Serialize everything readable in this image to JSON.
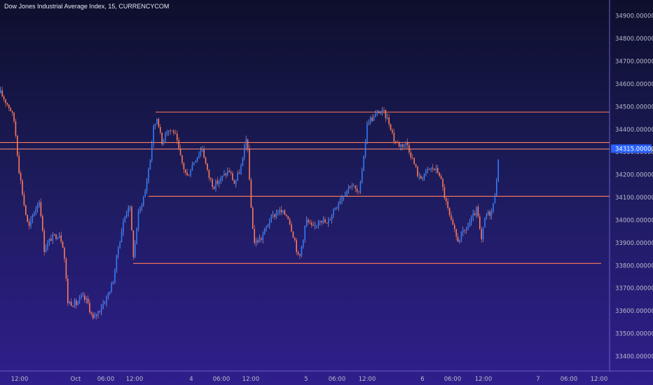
{
  "header": {
    "title": "Dow Jones Industrial Average Index, 15, CURRENCYCOM"
  },
  "colors": {
    "candle": "#2f7bff",
    "wick": "#9fc3ff",
    "level": "#ff7a59",
    "axis_line": "#6a5fc8",
    "last_price_bg": "#2962ff"
  },
  "chart_data": {
    "type": "candlestick",
    "title": "Dow Jones Industrial Average Index, 15, CURRENCYCOM",
    "xlabel": "",
    "ylabel": "",
    "ylim": [
      33335,
      34970
    ],
    "grid": false,
    "y_ticks": [
      "34900.00000000",
      "34800.00000000",
      "34700.00000000",
      "34600.00000000",
      "34500.00000000",
      "34400.00000000",
      "34300.00000000",
      "34200.00000000",
      "34100.00000000",
      "34000.00000000",
      "33900.00000000",
      "33800.00000000",
      "33700.00000000",
      "33600.00000000",
      "33500.00000000",
      "33400.00000000"
    ],
    "x_ticks": [
      "12:00",
      "Oct",
      "06:00",
      "12:00",
      "4",
      "06:00",
      "12:00",
      "5",
      "06:00",
      "12:00",
      "6",
      "06:00",
      "12:00",
      "7",
      "06:00",
      "12:00"
    ],
    "last_price": "34315.00000000",
    "path": [
      [
        0,
        34560
      ],
      [
        14,
        34490
      ],
      [
        20,
        34430
      ],
      [
        26,
        34230
      ],
      [
        34,
        34060
      ],
      [
        40,
        33960
      ],
      [
        48,
        34040
      ],
      [
        56,
        34090
      ],
      [
        62,
        33870
      ],
      [
        72,
        33920
      ],
      [
        84,
        33940
      ],
      [
        90,
        33880
      ],
      [
        96,
        33640
      ],
      [
        108,
        33630
      ],
      [
        116,
        33660
      ],
      [
        124,
        33640
      ],
      [
        132,
        33560
      ],
      [
        140,
        33600
      ],
      [
        150,
        33650
      ],
      [
        160,
        33720
      ],
      [
        168,
        33880
      ],
      [
        176,
        34000
      ],
      [
        184,
        34080
      ],
      [
        190,
        33830
      ],
      [
        196,
        34020
      ],
      [
        206,
        34120
      ],
      [
        214,
        34280
      ],
      [
        218,
        34400
      ],
      [
        224,
        34460
      ],
      [
        230,
        34330
      ],
      [
        236,
        34400
      ],
      [
        248,
        34390
      ],
      [
        258,
        34260
      ],
      [
        266,
        34190
      ],
      [
        276,
        34260
      ],
      [
        288,
        34320
      ],
      [
        296,
        34200
      ],
      [
        304,
        34150
      ],
      [
        314,
        34180
      ],
      [
        326,
        34220
      ],
      [
        334,
        34160
      ],
      [
        344,
        34240
      ],
      [
        352,
        34380
      ],
      [
        356,
        34110
      ],
      [
        362,
        33900
      ],
      [
        372,
        33920
      ],
      [
        384,
        34000
      ],
      [
        396,
        34040
      ],
      [
        410,
        34020
      ],
      [
        420,
        33910
      ],
      [
        426,
        33820
      ],
      [
        436,
        34000
      ],
      [
        446,
        33960
      ],
      [
        456,
        34010
      ],
      [
        466,
        33980
      ],
      [
        476,
        34050
      ],
      [
        486,
        34100
      ],
      [
        500,
        34160
      ],
      [
        512,
        34110
      ],
      [
        518,
        34280
      ],
      [
        524,
        34440
      ],
      [
        532,
        34450
      ],
      [
        540,
        34480
      ],
      [
        548,
        34470
      ],
      [
        556,
        34420
      ],
      [
        562,
        34350
      ],
      [
        570,
        34330
      ],
      [
        580,
        34340
      ],
      [
        590,
        34250
      ],
      [
        598,
        34180
      ],
      [
        606,
        34210
      ],
      [
        616,
        34230
      ],
      [
        626,
        34210
      ],
      [
        634,
        34100
      ],
      [
        642,
        34000
      ],
      [
        652,
        33910
      ],
      [
        662,
        33950
      ],
      [
        672,
        34000
      ],
      [
        680,
        34050
      ],
      [
        686,
        33900
      ],
      [
        692,
        34020
      ],
      [
        702,
        34040
      ],
      [
        706,
        34130
      ],
      [
        712,
        34300
      ]
    ],
    "levels": [
      {
        "price": 34476,
        "x_start": 222,
        "x_end": 870
      },
      {
        "price": 34342,
        "x_start": 0,
        "x_end": 870
      },
      {
        "price": 34313,
        "x_start": 0,
        "x_end": 870
      },
      {
        "price": 34105,
        "x_start": 212,
        "x_end": 870
      },
      {
        "price": 33809,
        "x_start": 190,
        "x_end": 858
      }
    ]
  }
}
